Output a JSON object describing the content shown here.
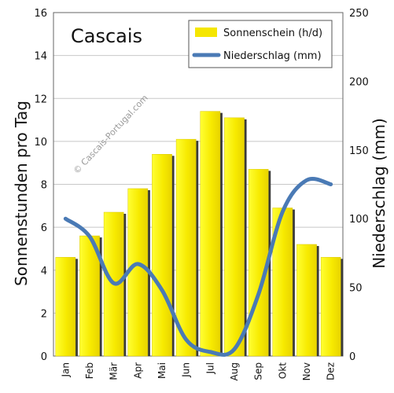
{
  "chart_data": {
    "type": "bar",
    "title": "Cascais",
    "watermark": "© Cascais-Portugal.com",
    "categories": [
      "Jan",
      "Feb",
      "Mär",
      "Apr",
      "Mai",
      "Jun",
      "Jul",
      "Aug",
      "Sep",
      "Okt",
      "Nov",
      "Dez"
    ],
    "series": [
      {
        "name": "Sonnenschein (h/d)",
        "type": "bar",
        "axis": "left",
        "color": "#f5e600",
        "values": [
          4.6,
          5.6,
          6.7,
          7.8,
          9.4,
          10.1,
          11.4,
          11.1,
          8.7,
          6.9,
          5.2,
          4.6
        ]
      },
      {
        "name": "Niederschlag (mm)",
        "type": "line",
        "axis": "right",
        "color": "#4a7ab5",
        "values": [
          100,
          87,
          53,
          67,
          48,
          12,
          3,
          5,
          45,
          105,
          128,
          125
        ]
      }
    ],
    "ylabel": "Sonnenstunden pro Tag",
    "ylabel_right": "Niederschlag (mm)",
    "ylim": [
      0,
      16
    ],
    "ylim_right": [
      0,
      250
    ],
    "yticks": [
      "0",
      "2",
      "4",
      "6",
      "8",
      "10",
      "12",
      "14",
      "16"
    ],
    "yticks_right": [
      "0",
      "50",
      "100",
      "150",
      "200",
      "250"
    ],
    "grid": true,
    "legend_position": "top-right"
  }
}
